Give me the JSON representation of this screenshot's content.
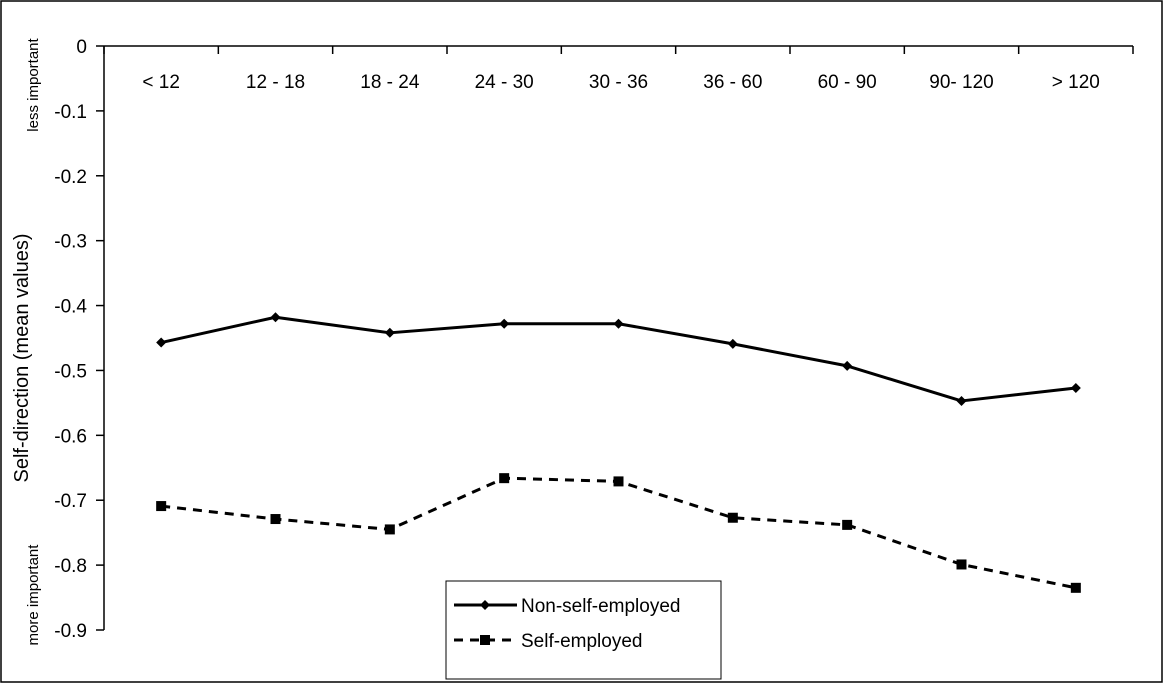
{
  "chart_data": {
    "type": "line",
    "title": "",
    "xlabel": "",
    "ylabel": "Self-direction (mean values)",
    "ylabel_top": "less important",
    "ylabel_bottom": "more important",
    "ylim": [
      -0.9,
      0
    ],
    "yticks": [
      "0",
      "-0.1",
      "-0.2",
      "-0.3",
      "-0.4",
      "-0.5",
      "-0.6",
      "-0.7",
      "-0.8",
      "-0.9"
    ],
    "ytick_values": [
      0,
      -0.1,
      -0.2,
      -0.3,
      -0.4,
      -0.5,
      -0.6,
      -0.7,
      -0.8,
      -0.9
    ],
    "categories": [
      "< 12",
      "12 - 18",
      "18 - 24",
      "24 - 30",
      "30 - 36",
      "36 - 60",
      "60 - 90",
      "90- 120",
      "> 120"
    ],
    "grid": false,
    "legend_position": "bottom-center",
    "series": [
      {
        "name": "Non-self-employed",
        "values": [
          -0.457,
          -0.418,
          -0.442,
          -0.428,
          -0.428,
          -0.459,
          -0.493,
          -0.547,
          -0.527
        ],
        "line_style": "solid",
        "marker": "diamond",
        "color": "#000000"
      },
      {
        "name": "Self-employed",
        "values": [
          -0.709,
          -0.729,
          -0.745,
          -0.666,
          -0.671,
          -0.727,
          -0.738,
          -0.799,
          -0.835
        ],
        "line_style": "dashed",
        "marker": "square",
        "color": "#000000"
      }
    ]
  }
}
